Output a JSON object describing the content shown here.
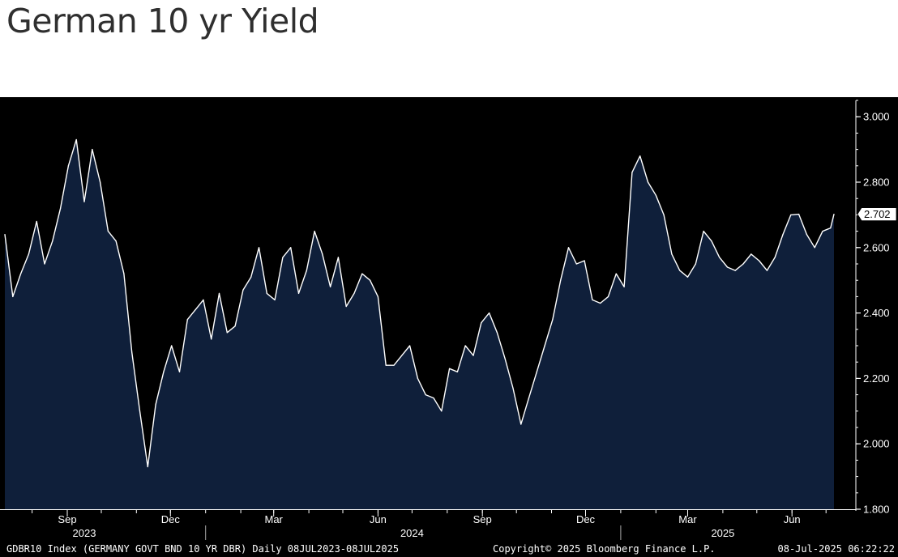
{
  "page": {
    "title": "German 10 yr Yield"
  },
  "colors": {
    "background": "#000000",
    "fill": "#0f1f3a",
    "line": "#ffffff",
    "text": "#ffffff"
  },
  "chart_data": {
    "type": "area",
    "title": "German 10 yr Yield",
    "ylim": [
      1.8,
      3.05
    ],
    "yticks": [
      "3.000",
      "2.800",
      "2.600",
      "2.400",
      "2.200",
      "2.000",
      "1.800"
    ],
    "last_value_label": "2.702",
    "grid": false,
    "x_month_labels": [
      {
        "label": "Sep",
        "date": "2023-09-01"
      },
      {
        "label": "Dec",
        "date": "2023-12-01"
      },
      {
        "label": "Mar",
        "date": "2024-03-01"
      },
      {
        "label": "Jun",
        "date": "2024-06-01"
      },
      {
        "label": "Sep",
        "date": "2024-09-01"
      },
      {
        "label": "Dec",
        "date": "2024-12-01"
      },
      {
        "label": "Mar",
        "date": "2025-03-01"
      },
      {
        "label": "Jun",
        "date": "2025-06-01"
      }
    ],
    "x_year_labels": [
      {
        "label": "2023",
        "date": "2023-09-16"
      },
      {
        "label": "2024",
        "date": "2024-07-01"
      },
      {
        "label": "2025",
        "date": "2025-04-01"
      }
    ],
    "x_year_dividers": [
      "2024-01-01",
      "2025-01-01"
    ],
    "series": [
      {
        "x": [
          "2023-07-08",
          "2023-07-15",
          "2023-07-22",
          "2023-07-29",
          "2023-08-05",
          "2023-08-12",
          "2023-08-19",
          "2023-08-26",
          "2023-09-02",
          "2023-09-09",
          "2023-09-16",
          "2023-09-23",
          "2023-09-30",
          "2023-10-07",
          "2023-10-14",
          "2023-10-21",
          "2023-10-28",
          "2023-11-04",
          "2023-11-11",
          "2023-11-18",
          "2023-11-25",
          "2023-12-02",
          "2023-12-09",
          "2023-12-16",
          "2023-12-23",
          "2023-12-30",
          "2024-01-06",
          "2024-01-13",
          "2024-01-20",
          "2024-01-27",
          "2024-02-03",
          "2024-02-10",
          "2024-02-17",
          "2024-02-24",
          "2024-03-02",
          "2024-03-09",
          "2024-03-16",
          "2024-03-23",
          "2024-03-30",
          "2024-04-06",
          "2024-04-13",
          "2024-04-20",
          "2024-04-27",
          "2024-05-04",
          "2024-05-11",
          "2024-05-18",
          "2024-05-25",
          "2024-06-01",
          "2024-06-08",
          "2024-06-15",
          "2024-06-22",
          "2024-06-29",
          "2024-07-06",
          "2024-07-13",
          "2024-07-20",
          "2024-07-27",
          "2024-08-03",
          "2024-08-10",
          "2024-08-17",
          "2024-08-24",
          "2024-08-31",
          "2024-09-07",
          "2024-09-14",
          "2024-09-21",
          "2024-09-28",
          "2024-10-05",
          "2024-10-12",
          "2024-10-19",
          "2024-10-26",
          "2024-11-02",
          "2024-11-09",
          "2024-11-16",
          "2024-11-23",
          "2024-11-30",
          "2024-12-07",
          "2024-12-14",
          "2024-12-21",
          "2024-12-28",
          "2025-01-04",
          "2025-01-11",
          "2025-01-18",
          "2025-01-25",
          "2025-02-01",
          "2025-02-08",
          "2025-02-15",
          "2025-02-22",
          "2025-03-01",
          "2025-03-08",
          "2025-03-15",
          "2025-03-22",
          "2025-03-29",
          "2025-04-05",
          "2025-04-12",
          "2025-04-19",
          "2025-04-26",
          "2025-05-03",
          "2025-05-10",
          "2025-05-17",
          "2025-05-24",
          "2025-05-31",
          "2025-06-07",
          "2025-06-14",
          "2025-06-21",
          "2025-06-28",
          "2025-07-05",
          "2025-07-08"
        ],
        "values": [
          2.64,
          2.45,
          2.52,
          2.58,
          2.68,
          2.55,
          2.62,
          2.72,
          2.85,
          2.93,
          2.74,
          2.9,
          2.8,
          2.65,
          2.62,
          2.52,
          2.28,
          2.1,
          1.93,
          2.12,
          2.22,
          2.3,
          2.22,
          2.38,
          2.41,
          2.44,
          2.32,
          2.46,
          2.34,
          2.36,
          2.47,
          2.51,
          2.6,
          2.46,
          2.44,
          2.57,
          2.6,
          2.46,
          2.53,
          2.65,
          2.58,
          2.48,
          2.57,
          2.42,
          2.46,
          2.52,
          2.5,
          2.45,
          2.24,
          2.24,
          2.27,
          2.3,
          2.2,
          2.15,
          2.14,
          2.1,
          2.23,
          2.22,
          2.3,
          2.27,
          2.37,
          2.4,
          2.34,
          2.26,
          2.17,
          2.06,
          2.14,
          2.22,
          2.3,
          2.38,
          2.5,
          2.6,
          2.55,
          2.56,
          2.44,
          2.43,
          2.45,
          2.52,
          2.48,
          2.83,
          2.88,
          2.8,
          2.76,
          2.7,
          2.58,
          2.53,
          2.51,
          2.55,
          2.65,
          2.62,
          2.57,
          2.54,
          2.53,
          2.55,
          2.58,
          2.56,
          2.53,
          2.57,
          2.64,
          2.7,
          2.702,
          2.64,
          2.6,
          2.65,
          2.66,
          2.702
        ]
      }
    ]
  },
  "footer": {
    "index_info": "GDBR10 Index (GERMANY GOVT BND 10 YR DBR)  Daily 08JUL2023-08JUL2025",
    "copyright": "Copyright© 2025 Bloomberg Finance L.P.",
    "timestamp": "08-Jul-2025 06:22:22"
  }
}
